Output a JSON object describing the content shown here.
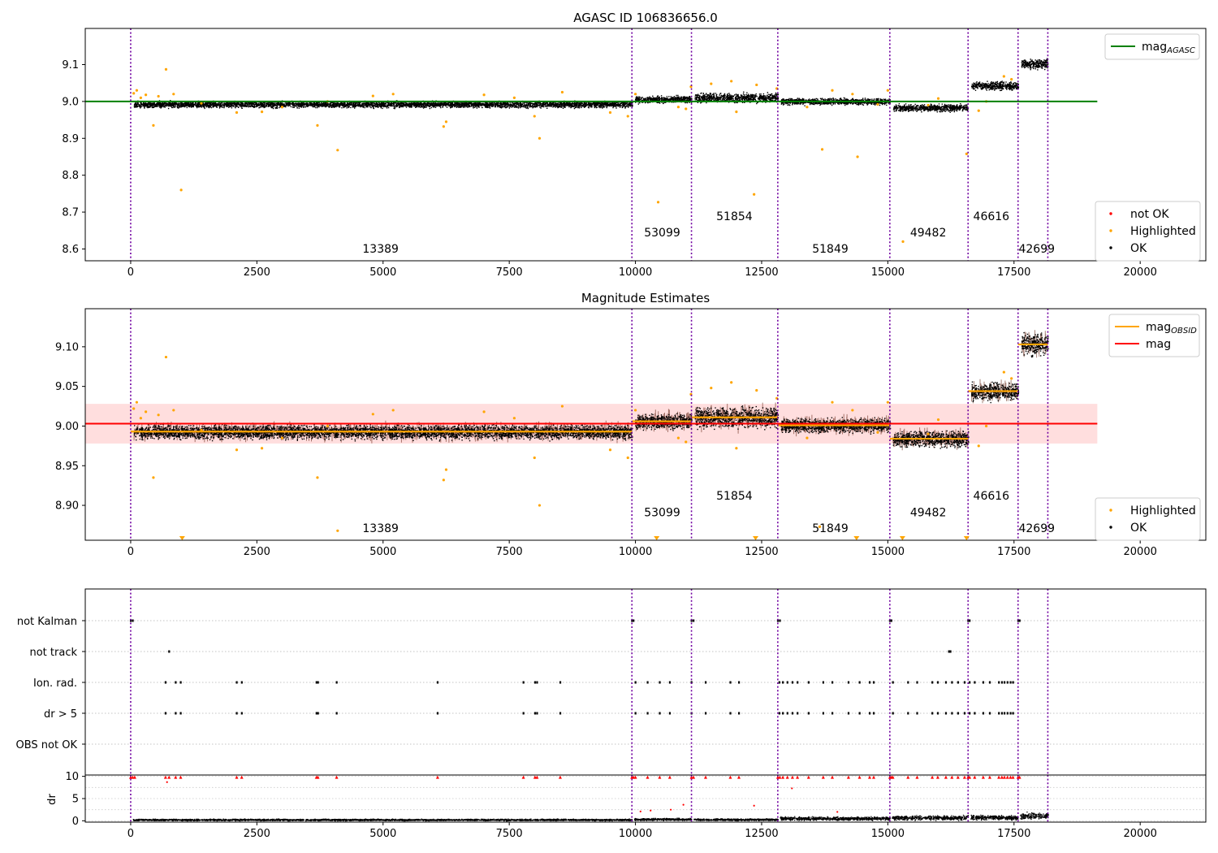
{
  "figure": {
    "background": "#ffffff"
  },
  "chart_data": [
    {
      "type": "scatter",
      "title": "AGASC ID 106836656.0",
      "xlabel": "",
      "ylabel": "",
      "xlim": [
        -900,
        21300
      ],
      "ylim": [
        8.568,
        9.198
      ],
      "xticks": [
        0,
        2500,
        5000,
        7500,
        10000,
        12500,
        15000,
        17500,
        20000
      ],
      "yticks": [
        8.6,
        8.7,
        8.8,
        8.9,
        9.0,
        9.1
      ],
      "ytick_labels": [
        "8.6",
        "8.7",
        "8.8",
        "8.9",
        "9.0",
        "9.1"
      ],
      "grid": false,
      "legend_top": {
        "position": "top-right",
        "entries": [
          {
            "label": "mag",
            "sub": "AGASC",
            "color": "#008000",
            "kind": "line"
          }
        ]
      },
      "legend_bottom": {
        "position": "bottom-right",
        "entries": [
          {
            "label": "not OK",
            "color": "#ff0000",
            "kind": "point"
          },
          {
            "label": "Highlighted",
            "color": "#ffa500",
            "kind": "point"
          },
          {
            "label": "OK",
            "color": "#000000",
            "kind": "point"
          }
        ]
      },
      "reference_line": {
        "y": 9.0,
        "x_range": [
          -900,
          19150
        ],
        "color": "#008000"
      },
      "obsid_bounds": [
        0,
        9930,
        11110,
        12820,
        15040,
        16590,
        17580,
        18170
      ],
      "obsid_labels": [
        {
          "text": "13389",
          "x": 4950,
          "y": 8.59
        },
        {
          "text": "53099",
          "x": 10530,
          "y": 8.634
        },
        {
          "text": "51854",
          "x": 11960,
          "y": 8.678
        },
        {
          "text": "51849",
          "x": 13860,
          "y": 8.59
        },
        {
          "text": "49482",
          "x": 15800,
          "y": 8.634
        },
        {
          "text": "46616",
          "x": 17050,
          "y": 8.678
        },
        {
          "text": "42699",
          "x": 17950,
          "y": 8.59
        }
      ],
      "ok_segments": [
        {
          "x": [
            0,
            9930
          ],
          "mean": 8.993,
          "spread": 0.011
        },
        {
          "x": [
            9930,
            11110
          ],
          "mean": 9.006,
          "spread": 0.012
        },
        {
          "x": [
            11110,
            12820
          ],
          "mean": 9.011,
          "spread": 0.016
        },
        {
          "x": [
            12820,
            15040
          ],
          "mean": 9.001,
          "spread": 0.011
        },
        {
          "x": [
            15040,
            16590
          ],
          "mean": 8.984,
          "spread": 0.012
        },
        {
          "x": [
            16590,
            17580
          ],
          "mean": 9.044,
          "spread": 0.014
        },
        {
          "x": [
            17580,
            18170
          ],
          "mean": 9.103,
          "spread": 0.016
        }
      ],
      "highlighted_points": [
        [
          60,
          9.022
        ],
        [
          120,
          9.03
        ],
        [
          200,
          9.01
        ],
        [
          300,
          9.018
        ],
        [
          450,
          8.935
        ],
        [
          550,
          9.014
        ],
        [
          700,
          9.087
        ],
        [
          850,
          9.02
        ],
        [
          1000,
          8.76
        ],
        [
          1400,
          8.995
        ],
        [
          2100,
          8.97
        ],
        [
          2600,
          8.972
        ],
        [
          3000,
          8.985
        ],
        [
          3700,
          8.935
        ],
        [
          3900,
          9.0
        ],
        [
          4100,
          8.868
        ],
        [
          4800,
          9.015
        ],
        [
          5200,
          9.02
        ],
        [
          6200,
          8.932
        ],
        [
          6250,
          8.945
        ],
        [
          7000,
          9.018
        ],
        [
          7600,
          9.01
        ],
        [
          8000,
          8.96
        ],
        [
          8100,
          8.9
        ],
        [
          8550,
          9.025
        ],
        [
          9500,
          8.97
        ],
        [
          9850,
          8.96
        ],
        [
          10000,
          9.02
        ],
        [
          10450,
          8.727
        ],
        [
          10850,
          8.985
        ],
        [
          11000,
          8.98
        ],
        [
          11100,
          9.04
        ],
        [
          11500,
          9.048
        ],
        [
          11900,
          9.055
        ],
        [
          12000,
          8.972
        ],
        [
          12350,
          8.748
        ],
        [
          12400,
          9.045
        ],
        [
          12800,
          9.035
        ],
        [
          13400,
          8.985
        ],
        [
          13700,
          8.87
        ],
        [
          13900,
          9.03
        ],
        [
          14300,
          9.02
        ],
        [
          14400,
          8.85
        ],
        [
          14800,
          8.992
        ],
        [
          15000,
          9.03
        ],
        [
          15300,
          8.62
        ],
        [
          15800,
          8.99
        ],
        [
          16000,
          9.008
        ],
        [
          16560,
          8.858
        ],
        [
          16800,
          8.975
        ],
        [
          16950,
          9.0
        ],
        [
          17300,
          9.068
        ],
        [
          17450,
          9.06
        ]
      ]
    },
    {
      "type": "scatter",
      "title": "Magnitude Estimates",
      "xlabel": "",
      "ylabel": "",
      "xlim": [
        -900,
        21300
      ],
      "ylim": [
        8.856,
        9.148
      ],
      "xticks": [
        0,
        2500,
        5000,
        7500,
        10000,
        12500,
        15000,
        17500,
        20000
      ],
      "yticks": [
        8.9,
        8.95,
        9.0,
        9.05,
        9.1
      ],
      "ytick_labels": [
        "8.90",
        "8.95",
        "9.00",
        "9.05",
        "9.10"
      ],
      "grid": false,
      "legend_top": {
        "position": "top-right",
        "entries": [
          {
            "label": "mag",
            "sub": "OBSID",
            "color": "#ffa500",
            "kind": "line"
          },
          {
            "label": "mag",
            "sub": "",
            "color": "#ff0000",
            "kind": "line"
          }
        ]
      },
      "legend_bottom": {
        "position": "bottom-right",
        "entries": [
          {
            "label": "Highlighted",
            "color": "#ffa500",
            "kind": "point"
          },
          {
            "label": "OK",
            "color": "#000000",
            "kind": "point"
          }
        ]
      },
      "reference_line": {
        "y": 9.003,
        "x_range": [
          -900,
          19150
        ],
        "color": "#ff0000"
      },
      "band": {
        "y": [
          8.978,
          9.028
        ],
        "x_range": [
          -900,
          19150
        ],
        "color": "#ffc8c8"
      },
      "obsid_bounds": [
        0,
        9930,
        11110,
        12820,
        15040,
        16590,
        17580,
        18170
      ],
      "obsid_labels": [
        {
          "text": "13389",
          "x": 4950,
          "y": 8.866
        },
        {
          "text": "53099",
          "x": 10530,
          "y": 8.886
        },
        {
          "text": "51854",
          "x": 11960,
          "y": 8.907
        },
        {
          "text": "51849",
          "x": 13860,
          "y": 8.866
        },
        {
          "text": "49482",
          "x": 15800,
          "y": 8.886
        },
        {
          "text": "46616",
          "x": 17050,
          "y": 8.907
        },
        {
          "text": "42699",
          "x": 17950,
          "y": 8.866
        }
      ],
      "obsid_mags": [
        8.993,
        9.006,
        9.011,
        9.001,
        8.984,
        9.044,
        9.103
      ],
      "ok_segments": [
        {
          "x": [
            0,
            9930
          ],
          "mean": 8.993,
          "spread": 0.011
        },
        {
          "x": [
            9930,
            11110
          ],
          "mean": 9.006,
          "spread": 0.012
        },
        {
          "x": [
            11110,
            12820
          ],
          "mean": 9.011,
          "spread": 0.016
        },
        {
          "x": [
            12820,
            15040
          ],
          "mean": 9.001,
          "spread": 0.011
        },
        {
          "x": [
            15040,
            16590
          ],
          "mean": 8.984,
          "spread": 0.012
        },
        {
          "x": [
            16590,
            17580
          ],
          "mean": 9.044,
          "spread": 0.014
        },
        {
          "x": [
            17580,
            18170
          ],
          "mean": 9.103,
          "spread": 0.016
        }
      ],
      "highlighted_points": [
        [
          60,
          9.022
        ],
        [
          120,
          9.03
        ],
        [
          200,
          9.01
        ],
        [
          300,
          9.018
        ],
        [
          450,
          8.935
        ],
        [
          550,
          9.014
        ],
        [
          700,
          9.087
        ],
        [
          850,
          9.02
        ],
        [
          1400,
          8.995
        ],
        [
          2100,
          8.97
        ],
        [
          2600,
          8.972
        ],
        [
          3000,
          8.985
        ],
        [
          3700,
          8.935
        ],
        [
          3900,
          9.0
        ],
        [
          4100,
          8.868
        ],
        [
          4800,
          9.015
        ],
        [
          5200,
          9.02
        ],
        [
          6200,
          8.932
        ],
        [
          6250,
          8.945
        ],
        [
          7000,
          9.018
        ],
        [
          7600,
          9.01
        ],
        [
          8000,
          8.96
        ],
        [
          8100,
          8.9
        ],
        [
          8550,
          9.025
        ],
        [
          9500,
          8.97
        ],
        [
          9850,
          8.96
        ],
        [
          10000,
          9.02
        ],
        [
          10850,
          8.985
        ],
        [
          11000,
          8.98
        ],
        [
          11100,
          9.04
        ],
        [
          11500,
          9.048
        ],
        [
          11900,
          9.055
        ],
        [
          12000,
          8.972
        ],
        [
          12400,
          9.045
        ],
        [
          12800,
          9.035
        ],
        [
          13400,
          8.985
        ],
        [
          13650,
          8.873
        ],
        [
          13900,
          9.03
        ],
        [
          14300,
          9.02
        ],
        [
          14800,
          8.992
        ],
        [
          15000,
          9.03
        ],
        [
          15800,
          8.99
        ],
        [
          16000,
          9.008
        ],
        [
          16800,
          8.975
        ],
        [
          16950,
          9.0
        ],
        [
          17300,
          9.068
        ],
        [
          17450,
          9.06
        ]
      ],
      "offscale_markers": [
        1020,
        10420,
        12380,
        14380,
        15290,
        16560
      ]
    },
    {
      "type": "scatter",
      "title": "",
      "xlabel": "",
      "ylabel": "",
      "xlim": [
        -900,
        21300
      ],
      "xticks": [
        0,
        2500,
        5000,
        7500,
        10000,
        12500,
        15000,
        17500,
        20000
      ],
      "flag_rows": [
        "not Kalman",
        "not track",
        "Ion. rad.",
        "dr > 5",
        "OBS not OK"
      ],
      "obsid_bounds": [
        0,
        9930,
        11110,
        12820,
        15040,
        16590,
        17580,
        18170
      ],
      "flags": {
        "not Kalman": [
          0,
          40,
          9930,
          9960,
          11110,
          11150,
          12820,
          12860,
          15040,
          15070,
          16590,
          16620,
          17580,
          17610
        ],
        "not track": [
          760,
          16210,
          16240
        ],
        "Ion. rad.": [
          690,
          890,
          990,
          2100,
          2200,
          3680,
          3710,
          4080,
          6080,
          7780,
          8010,
          8050,
          8510,
          10000,
          10240,
          10480,
          10680,
          11110,
          11390,
          11880,
          12050,
          12850,
          12920,
          13010,
          13110,
          13210,
          13430,
          13720,
          13900,
          14220,
          14440,
          14640,
          14720,
          15100,
          15400,
          15580,
          15880,
          15990,
          16150,
          16270,
          16390,
          16520,
          16620,
          16720,
          16890,
          17020,
          17200,
          17260,
          17310,
          17370,
          17430,
          17480
        ],
        "dr > 5": [
          690,
          890,
          990,
          2100,
          2200,
          3680,
          3710,
          4080,
          6080,
          7780,
          8010,
          8050,
          8510,
          10000,
          10240,
          10480,
          10680,
          11110,
          11390,
          11880,
          12050,
          12850,
          12920,
          13010,
          13110,
          13210,
          13430,
          13720,
          13900,
          14220,
          14440,
          14640,
          14720,
          15100,
          15400,
          15580,
          15880,
          15990,
          16150,
          16270,
          16390,
          16520,
          16620,
          16720,
          16890,
          17020,
          17200,
          17260,
          17310,
          17370,
          17430,
          17480
        ],
        "OBS not OK": []
      }
    },
    {
      "type": "scatter",
      "title": "",
      "xlabel": "",
      "ylabel": "dr",
      "xlim": [
        -900,
        21300
      ],
      "ylim": [
        -0.3,
        10.3
      ],
      "xticks": [
        0,
        2500,
        5000,
        7500,
        10000,
        12500,
        15000,
        17500,
        20000
      ],
      "xtick_labels": [
        "0",
        "2500",
        "5000",
        "7500",
        "10000",
        "12500",
        "15000",
        "17500",
        "20000"
      ],
      "yticks": [
        0,
        5,
        10
      ],
      "ytick_labels": [
        "0",
        "5",
        "10"
      ],
      "grid": true,
      "obsid_bounds": [
        0,
        9930,
        11110,
        12820,
        15040,
        16590,
        17580,
        18170
      ],
      "clipped_points": [
        0,
        40,
        80,
        690,
        760,
        890,
        990,
        2100,
        2200,
        3680,
        3710,
        4080,
        6080,
        7780,
        8010,
        8050,
        8510,
        9930,
        9960,
        10000,
        10240,
        10480,
        10680,
        11110,
        11150,
        11390,
        11880,
        12050,
        12820,
        12860,
        12920,
        13010,
        13110,
        13210,
        13430,
        13720,
        13900,
        14220,
        14440,
        14640,
        14720,
        15040,
        15070,
        15100,
        15400,
        15580,
        15880,
        15990,
        16150,
        16270,
        16390,
        16520,
        16590,
        16620,
        16720,
        16890,
        17020,
        17200,
        17260,
        17310,
        17370,
        17430,
        17480,
        17580,
        17610
      ],
      "outliers": [
        [
          720,
          8.7
        ],
        [
          10100,
          2.1
        ],
        [
          10300,
          2.3
        ],
        [
          10700,
          2.5
        ],
        [
          10950,
          3.6
        ],
        [
          12350,
          3.4
        ],
        [
          13100,
          7.3
        ],
        [
          14000,
          2.0
        ]
      ],
      "baseline_segments": [
        {
          "x": [
            0,
            9930
          ],
          "level": 0.3
        },
        {
          "x": [
            9930,
            11110
          ],
          "level": 0.4
        },
        {
          "x": [
            11110,
            12820
          ],
          "level": 0.35
        },
        {
          "x": [
            12820,
            15040
          ],
          "level": 0.6
        },
        {
          "x": [
            15040,
            16590
          ],
          "level": 0.75
        },
        {
          "x": [
            16590,
            17580
          ],
          "level": 0.8
        },
        {
          "x": [
            17580,
            18170
          ],
          "level": 1.2
        }
      ]
    }
  ]
}
